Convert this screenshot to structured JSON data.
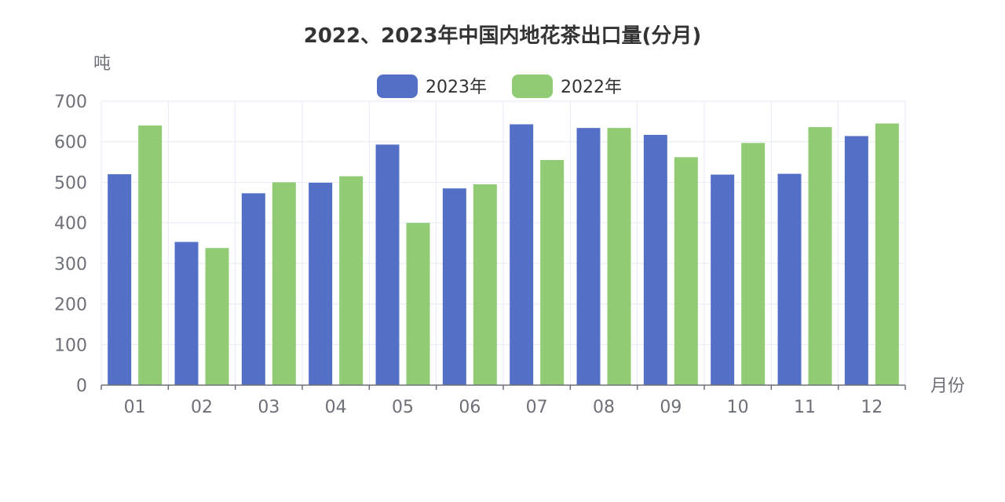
{
  "chart_data": {
    "type": "bar",
    "title": "2022、2023年中国内地花茶出口量(分月)",
    "xlabel": "月份",
    "ylabel": "吨",
    "ylim": [
      0,
      700
    ],
    "yticks": [
      "0",
      "100",
      "200",
      "300",
      "400",
      "500",
      "600",
      "700"
    ],
    "categories": [
      "01",
      "02",
      "03",
      "04",
      "05",
      "06",
      "07",
      "08",
      "09",
      "10",
      "11",
      "12"
    ],
    "series": [
      {
        "name": "2023年",
        "color": "#5470c6",
        "values": [
          520,
          353,
          473,
          499,
          593,
          485,
          643,
          634,
          617,
          519,
          521,
          614
        ]
      },
      {
        "name": "2022年",
        "color": "#91cc75",
        "values": [
          640,
          338,
          500,
          515,
          400,
          495,
          555,
          634,
          562,
          597,
          636,
          645
        ]
      }
    ],
    "legend_position": "top-center",
    "grid": true
  }
}
